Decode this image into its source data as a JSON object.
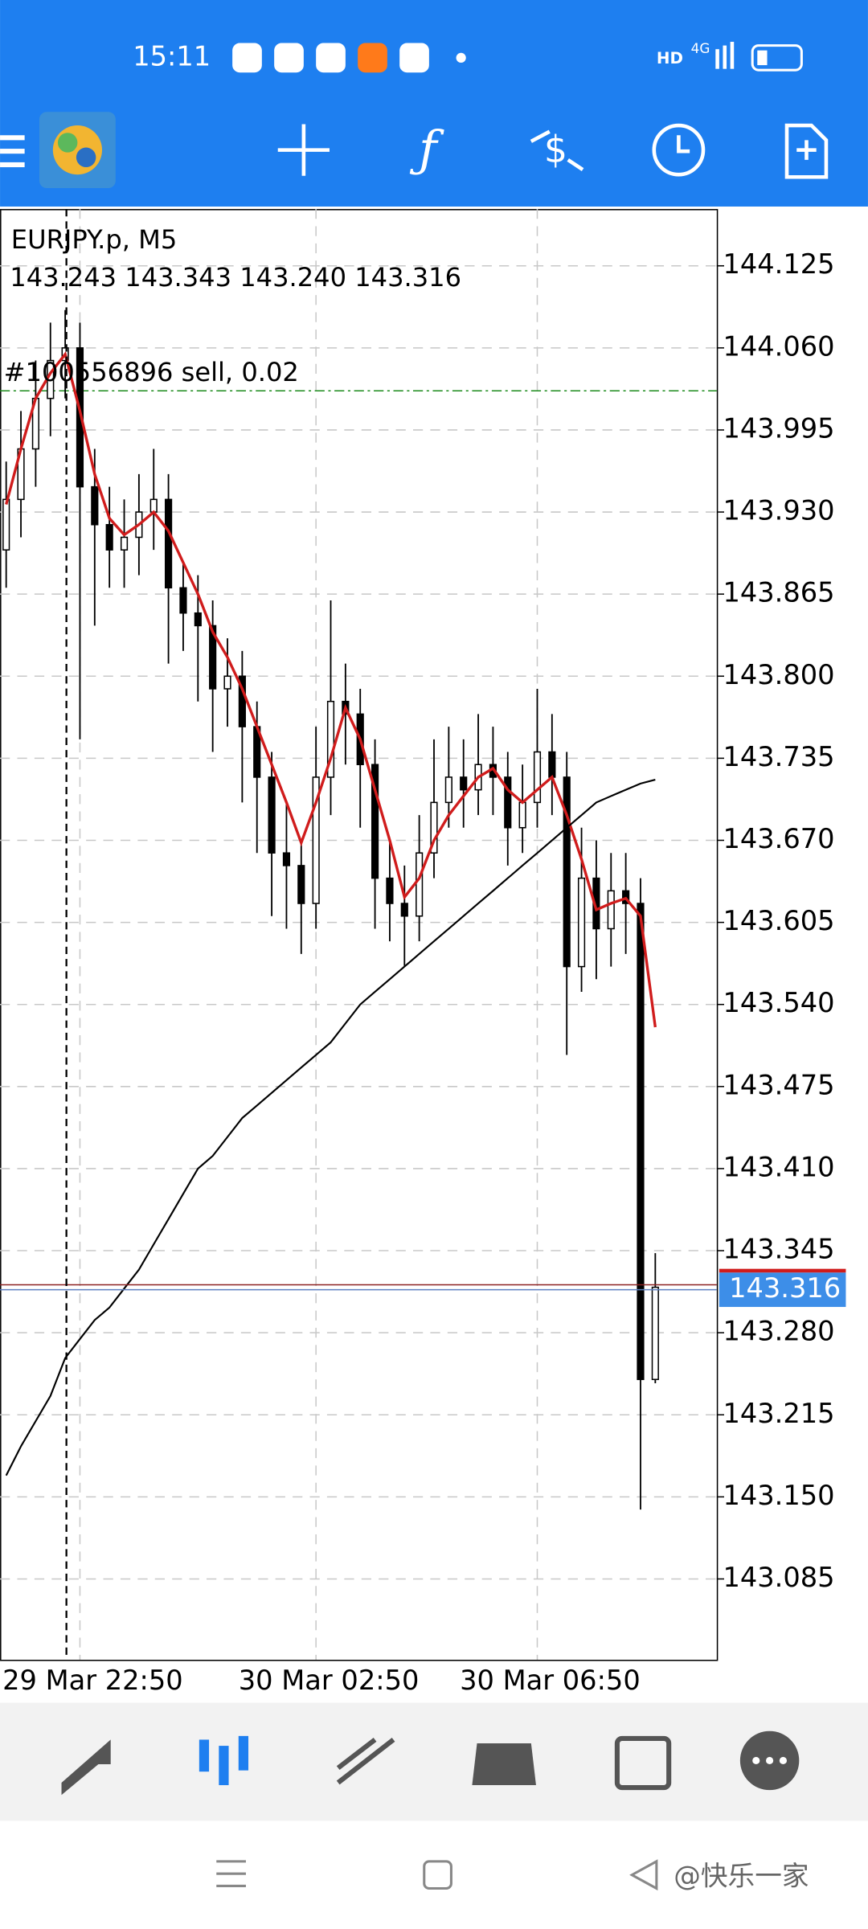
{
  "status_bar": {
    "time": "15:11",
    "hd": "HD",
    "network": "4G"
  },
  "watermark": "@快乐一家",
  "chart_data": {
    "type": "candlestick",
    "title": "EURJPY.p, M5",
    "ohlc_text": "143.243 143.343 143.240 143.316",
    "order_label": "#100556896 sell, 0.02",
    "order_price": 144.026,
    "bid": 143.316,
    "ylim": [
      143.021,
      144.17
    ],
    "yticks": [
      144.125,
      {
        "value": 144.06,
        "label": "144.060"
      },
      143.995,
      {
        "value": 143.93,
        "label": "143.930"
      },
      143.865,
      {
        "value": 143.8,
        "label": "143.800"
      },
      143.735,
      {
        "value": 143.67,
        "label": "143.670"
      },
      143.605,
      {
        "value": 143.54,
        "label": "143.540"
      },
      143.475,
      {
        "value": 143.41,
        "label": "143.410"
      },
      143.345,
      {
        "value": 143.28,
        "label": "143.280"
      },
      143.215,
      {
        "value": 143.15,
        "label": "143.150"
      },
      143.085
    ],
    "grid": true,
    "categories": [
      "29 Mar 22:50",
      null,
      null,
      null,
      null,
      null,
      null,
      null,
      null,
      null,
      null,
      null,
      null,
      null,
      null,
      null,
      "30 Mar 02:50",
      null,
      null,
      null,
      null,
      null,
      null,
      null,
      null,
      null,
      null,
      null,
      null,
      null,
      null,
      "30 Mar 06:50",
      null,
      null,
      null,
      null,
      null,
      null,
      null,
      null,
      null,
      null,
      null,
      null,
      null
    ],
    "open": [
      143.9,
      143.94,
      143.98,
      144.02,
      144.05,
      144.06,
      143.95,
      143.92,
      143.9,
      143.91,
      143.93,
      143.94,
      143.87,
      143.85,
      143.84,
      143.79,
      143.8,
      143.76,
      143.72,
      143.66,
      143.65,
      143.62,
      143.72,
      143.78,
      143.77,
      143.73,
      143.64,
      143.62,
      143.61,
      143.66,
      143.7,
      143.72,
      143.71,
      143.73,
      143.72,
      143.68,
      143.7,
      143.74,
      143.72,
      143.57,
      143.64,
      143.6,
      143.63,
      143.62,
      143.243
    ],
    "high": [
      143.97,
      144.01,
      144.05,
      144.08,
      144.09,
      144.08,
      143.98,
      143.95,
      143.94,
      143.96,
      143.98,
      143.96,
      143.89,
      143.88,
      143.86,
      143.83,
      143.82,
      143.78,
      143.74,
      143.7,
      143.67,
      143.76,
      143.86,
      143.81,
      143.79,
      143.75,
      143.67,
      143.65,
      143.69,
      143.75,
      143.76,
      143.75,
      143.77,
      143.76,
      143.74,
      143.73,
      143.79,
      143.77,
      143.74,
      143.68,
      143.67,
      143.66,
      143.66,
      143.64,
      143.343
    ],
    "low": [
      143.87,
      143.91,
      143.95,
      143.99,
      144.02,
      143.75,
      143.84,
      143.87,
      143.87,
      143.88,
      143.9,
      143.81,
      143.82,
      143.78,
      143.74,
      143.76,
      143.7,
      143.66,
      143.61,
      143.6,
      143.58,
      143.6,
      143.69,
      143.73,
      143.68,
      143.6,
      143.59,
      143.57,
      143.59,
      143.64,
      143.68,
      143.68,
      143.69,
      143.69,
      143.65,
      143.66,
      143.68,
      143.69,
      143.5,
      143.55,
      143.56,
      143.57,
      143.58,
      143.14,
      143.24
    ],
    "close": [
      143.94,
      143.98,
      144.02,
      144.05,
      144.06,
      143.95,
      143.92,
      143.9,
      143.91,
      143.93,
      143.94,
      143.87,
      143.85,
      143.84,
      143.79,
      143.8,
      143.76,
      143.72,
      143.66,
      143.65,
      143.62,
      143.72,
      143.78,
      143.77,
      143.73,
      143.64,
      143.62,
      143.61,
      143.66,
      143.7,
      143.72,
      143.71,
      143.73,
      143.72,
      143.68,
      143.7,
      143.74,
      143.72,
      143.57,
      143.64,
      143.6,
      143.63,
      143.62,
      143.243,
      143.316
    ],
    "series": [
      {
        "color": "#d01c1c",
        "values": [
          143.936,
          143.98,
          144.02,
          144.04,
          144.055,
          144.01,
          143.96,
          143.925,
          143.912,
          143.92,
          143.93,
          143.915,
          143.89,
          143.865,
          143.835,
          143.815,
          143.79,
          143.76,
          143.73,
          143.7,
          143.668,
          143.7,
          143.735,
          143.775,
          143.75,
          143.71,
          143.67,
          143.625,
          143.64,
          143.67,
          143.69,
          143.705,
          143.72,
          143.727,
          143.71,
          143.7,
          143.71,
          143.72,
          143.69,
          143.655,
          143.615,
          143.62,
          143.624,
          143.61,
          143.522
        ]
      },
      {
        "color": "#000000",
        "values": [
          143.167,
          143.19,
          143.21,
          143.23,
          143.26,
          143.275,
          143.29,
          143.3,
          143.315,
          143.33,
          143.35,
          143.37,
          143.39,
          143.41,
          143.42,
          143.435,
          143.45,
          143.46,
          143.47,
          143.48,
          143.49,
          143.5,
          143.51,
          143.525,
          143.54,
          143.55,
          143.56,
          143.57,
          143.58,
          143.59,
          143.6,
          143.61,
          143.62,
          143.63,
          143.64,
          143.65,
          143.66,
          143.67,
          143.68,
          143.69,
          143.7,
          143.705,
          143.71,
          143.715,
          143.718
        ]
      }
    ]
  }
}
